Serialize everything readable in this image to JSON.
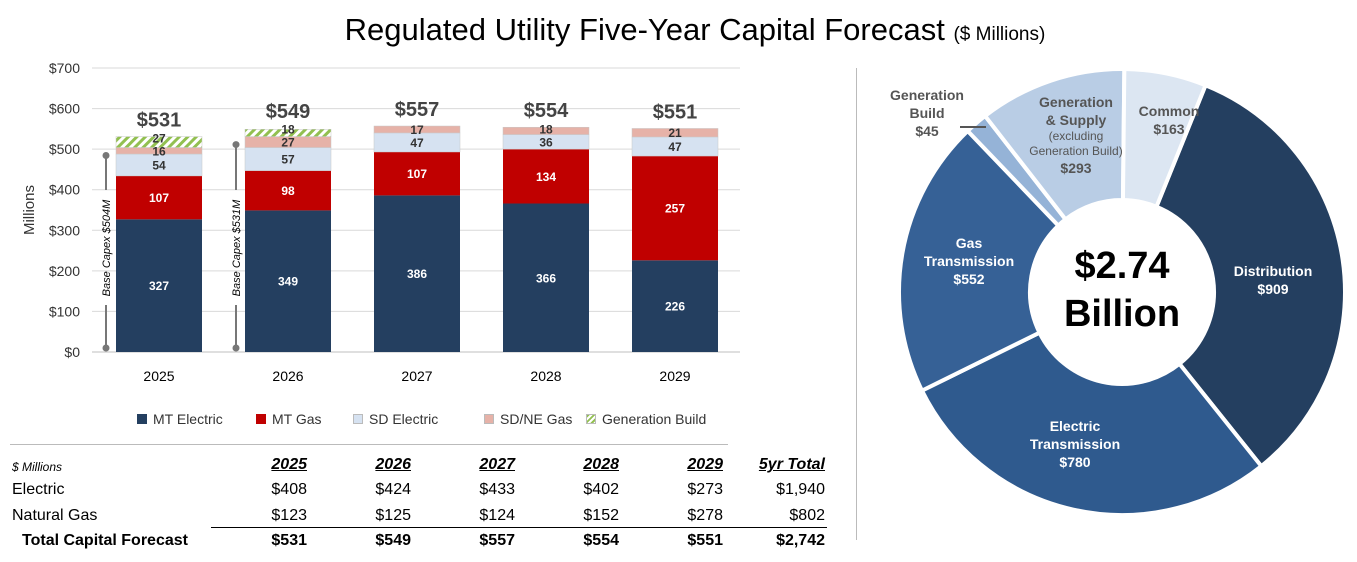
{
  "title": "Regulated Utility Five-Year Capital Forecast",
  "title_unit": "($ Millions)",
  "colors": {
    "mt_electric": "#243F60",
    "mt_gas": "#C00000",
    "sd_electric": "#D6E2F1",
    "sdne_gas": "#E6B2A8",
    "generation_build": "#92C050"
  },
  "chart_data": [
    {
      "type": "bar",
      "stacked": true,
      "ylabel": "Millions",
      "ylim": [
        0,
        700
      ],
      "yticks": [
        "$0",
        "$100",
        "$200",
        "$300",
        "$400",
        "$500",
        "$600",
        "$700"
      ],
      "grid": true,
      "legend_placement": "bottom",
      "categories": [
        "2025",
        "2026",
        "2027",
        "2028",
        "2029"
      ],
      "totals": [
        "$531",
        "$549",
        "$557",
        "$554",
        "$551"
      ],
      "series": [
        {
          "name": "MT Electric",
          "values": [
            327,
            349,
            386,
            366,
            226
          ],
          "color": "#243F60"
        },
        {
          "name": "MT Gas",
          "values": [
            107,
            98,
            107,
            134,
            257
          ],
          "color": "#C00000"
        },
        {
          "name": "SD Electric",
          "values": [
            54,
            57,
            47,
            36,
            47
          ],
          "color": "#D6E2F1"
        },
        {
          "name": "SD/NE Gas",
          "values": [
            16,
            27,
            17,
            18,
            21
          ],
          "color": "#E6B2A8"
        },
        {
          "name": "Generation Build",
          "values": [
            27,
            18,
            null,
            null,
            null
          ],
          "color": "#92C050",
          "pattern": "hatched"
        }
      ],
      "annotations": [
        {
          "category": "2025",
          "text": "Base Capex $504M",
          "value": 504
        },
        {
          "category": "2026",
          "text": "Base Capex $531M",
          "value": 531
        }
      ]
    },
    {
      "type": "pie",
      "donut": true,
      "center_text": [
        "$2.74",
        "Billion"
      ],
      "slices": [
        {
          "name": "Distribution",
          "label": "$909",
          "value": 909,
          "color": "#243F60"
        },
        {
          "name": "Electric Transmission",
          "label": "$780",
          "value": 780,
          "color": "#2F5A8E"
        },
        {
          "name": "Gas Transmission",
          "label": "$552",
          "value": 552,
          "color": "#366196"
        },
        {
          "name": "Generation Build",
          "label": "$45",
          "value": 45,
          "color": "#95B3D7"
        },
        {
          "name": "Generation & Supply",
          "note": "(excluding Generation Build)",
          "label": "$293",
          "value": 293,
          "color": "#B9CDE5"
        },
        {
          "name": "Common",
          "label": "$163",
          "value": 163,
          "color": "#DCE6F2"
        }
      ]
    }
  ],
  "table": {
    "unit_label": "$ Millions",
    "headers": [
      "2025",
      "2026",
      "2027",
      "2028",
      "2029",
      "5yr Total"
    ],
    "rows": [
      {
        "label": "Electric",
        "values": [
          "$408",
          "$424",
          "$433",
          "$402",
          "$273",
          "$1,940"
        ]
      },
      {
        "label": "Natural Gas",
        "values": [
          "$123",
          "$125",
          "$124",
          "$152",
          "$278",
          "$802"
        ]
      },
      {
        "label": "Total Capital Forecast",
        "values": [
          "$531",
          "$549",
          "$557",
          "$554",
          "$551",
          "$2,742"
        ]
      }
    ]
  }
}
